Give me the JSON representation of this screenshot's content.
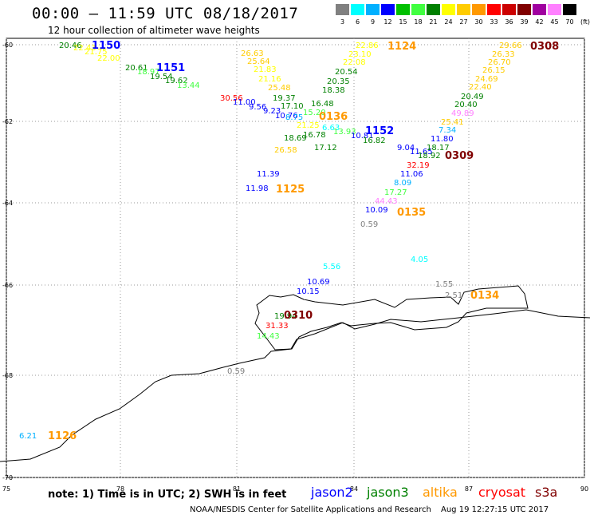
{
  "header": {
    "title": "00:00 – 11:59 UTC 08/18/2017",
    "subtitle": "12 hour collection of altimeter wave heights"
  },
  "legend": {
    "unit": "(ft)",
    "colors": [
      "#808080",
      "#00ffff",
      "#00b0ff",
      "#0000ff",
      "#00c000",
      "#40ff40",
      "#008000",
      "#ffff00",
      "#ffcc00",
      "#ff9900",
      "#ff0000",
      "#cc0000",
      "#800000",
      "#a000a0",
      "#ff80ff",
      "#000000"
    ],
    "labels": [
      "3",
      "6",
      "9",
      "12",
      "15",
      "18",
      "21",
      "24",
      "27",
      "30",
      "33",
      "36",
      "39",
      "42",
      "45",
      "70"
    ]
  },
  "axes": {
    "x_ticks": [
      "75",
      "78",
      "81",
      "84",
      "87",
      "90"
    ],
    "y_ticks": [
      "-60",
      "-62",
      "-64",
      "-66",
      "-68",
      "-70"
    ]
  },
  "passes": [
    {
      "label": "1150",
      "color": "#0000ff"
    },
    {
      "label": "1151",
      "color": "#0000ff"
    },
    {
      "label": "1124",
      "color": "#ff9900"
    },
    {
      "label": "0308",
      "color": "#800000"
    },
    {
      "label": "1152",
      "color": "#0000ff"
    },
    {
      "label": "0136",
      "color": "#ff9900"
    },
    {
      "label": "0309",
      "color": "#800000"
    },
    {
      "label": "1125",
      "color": "#ff9900"
    },
    {
      "label": "0135",
      "color": "#ff9900"
    },
    {
      "label": "0134",
      "color": "#ff9900"
    },
    {
      "label": "0310",
      "color": "#800000"
    },
    {
      "label": "1126",
      "color": "#ff9900"
    }
  ],
  "observations": [
    {
      "v": "20.46",
      "c": "#008000"
    },
    {
      "v": "22.43",
      "c": "#ffff00"
    },
    {
      "v": "21.75",
      "c": "#ffff00"
    },
    {
      "v": "22.00",
      "c": "#ffff00"
    },
    {
      "v": "20.61",
      "c": "#008000"
    },
    {
      "v": "18.97",
      "c": "#40ff40"
    },
    {
      "v": "19.54",
      "c": "#008000"
    },
    {
      "v": "19.62",
      "c": "#008000"
    },
    {
      "v": "13.44",
      "c": "#40ff40"
    },
    {
      "v": "26.63",
      "c": "#ffcc00"
    },
    {
      "v": "25.64",
      "c": "#ffcc00"
    },
    {
      "v": "21.83",
      "c": "#ffff00"
    },
    {
      "v": "21.16",
      "c": "#ffff00"
    },
    {
      "v": "25.48",
      "c": "#ffcc00"
    },
    {
      "v": "19.37",
      "c": "#008000"
    },
    {
      "v": "17.10",
      "c": "#008000"
    },
    {
      "v": "16.48",
      "c": "#008000"
    },
    {
      "v": "15.20",
      "c": "#40ff40"
    },
    {
      "v": "30.56",
      "c": "#ff0000"
    },
    {
      "v": "11.00",
      "c": "#0000ff"
    },
    {
      "v": "9.56",
      "c": "#0000ff"
    },
    {
      "v": "9.23",
      "c": "#0000ff"
    },
    {
      "v": "10.76",
      "c": "#0000ff"
    },
    {
      "v": "8.75",
      "c": "#00b0ff"
    },
    {
      "v": "22.86",
      "c": "#ffff00"
    },
    {
      "v": "23.10",
      "c": "#ffff00"
    },
    {
      "v": "22.08",
      "c": "#ffff00"
    },
    {
      "v": "20.54",
      "c": "#008000"
    },
    {
      "v": "20.35",
      "c": "#008000"
    },
    {
      "v": "18.38",
      "c": "#008000"
    },
    {
      "v": "21.25",
      "c": "#ffff00"
    },
    {
      "v": "6.63",
      "c": "#00ffff"
    },
    {
      "v": "13.93",
      "c": "#40ff40"
    },
    {
      "v": "18.69",
      "c": "#008000"
    },
    {
      "v": "16.78",
      "c": "#008000"
    },
    {
      "v": "26.58",
      "c": "#ffcc00"
    },
    {
      "v": "17.12",
      "c": "#008000"
    },
    {
      "v": "10.81",
      "c": "#0000ff"
    },
    {
      "v": "16.82",
      "c": "#008000"
    },
    {
      "v": "29.66",
      "c": "#ffcc00"
    },
    {
      "v": "26.33",
      "c": "#ffcc00"
    },
    {
      "v": "26.70",
      "c": "#ffcc00"
    },
    {
      "v": "26.15",
      "c": "#ffcc00"
    },
    {
      "v": "24.69",
      "c": "#ffcc00"
    },
    {
      "v": "22.40",
      "c": "#ffcc00"
    },
    {
      "v": "20.49",
      "c": "#008000"
    },
    {
      "v": "20.40",
      "c": "#008000"
    },
    {
      "v": "49.89",
      "c": "#ff80ff"
    },
    {
      "v": "25.41",
      "c": "#ffcc00"
    },
    {
      "v": "7.34",
      "c": "#00b0ff"
    },
    {
      "v": "11.80",
      "c": "#0000ff"
    },
    {
      "v": "9.04",
      "c": "#0000ff"
    },
    {
      "v": "11.65",
      "c": "#0000ff"
    },
    {
      "v": "18.17",
      "c": "#008000"
    },
    {
      "v": "18.92",
      "c": "#008000"
    },
    {
      "v": "32.19",
      "c": "#ff0000"
    },
    {
      "v": "11.06",
      "c": "#0000ff"
    },
    {
      "v": "8.09",
      "c": "#00b0ff"
    },
    {
      "v": "17.27",
      "c": "#40ff40"
    },
    {
      "v": "44.43",
      "c": "#ff80ff"
    },
    {
      "v": "10.09",
      "c": "#0000ff"
    },
    {
      "v": "0.59",
      "c": "#808080"
    },
    {
      "v": "11.39",
      "c": "#0000ff"
    },
    {
      "v": "11.98",
      "c": "#0000ff"
    },
    {
      "v": "5.56",
      "c": "#00ffff"
    },
    {
      "v": "4.05",
      "c": "#00ffff"
    },
    {
      "v": "10.69",
      "c": "#0000ff"
    },
    {
      "v": "10.15",
      "c": "#0000ff"
    },
    {
      "v": "1.55",
      "c": "#808080"
    },
    {
      "v": "2.51",
      "c": "#808080"
    },
    {
      "v": "19.94",
      "c": "#008000"
    },
    {
      "v": "31.33",
      "c": "#ff0000"
    },
    {
      "v": "14.43",
      "c": "#40ff40"
    },
    {
      "v": "0.59",
      "c": "#808080"
    },
    {
      "v": "6.21",
      "c": "#00b0ff"
    }
  ],
  "footer": {
    "note": "note: 1) Time is in UTC; 2) SWH is in feet",
    "satellites": [
      {
        "name": "jason2",
        "color": "#0000ff"
      },
      {
        "name": "jason3",
        "color": "#008000"
      },
      {
        "name": "altika",
        "color": "#ff9900"
      },
      {
        "name": "cryosat",
        "color": "#ff0000"
      },
      {
        "name": "s3a",
        "color": "#800000"
      }
    ],
    "credit": "NOAA/NESDIS Center for Satellite Applications and Research",
    "timestamp": "Aug 19 12:27:15 UTC 2017"
  }
}
